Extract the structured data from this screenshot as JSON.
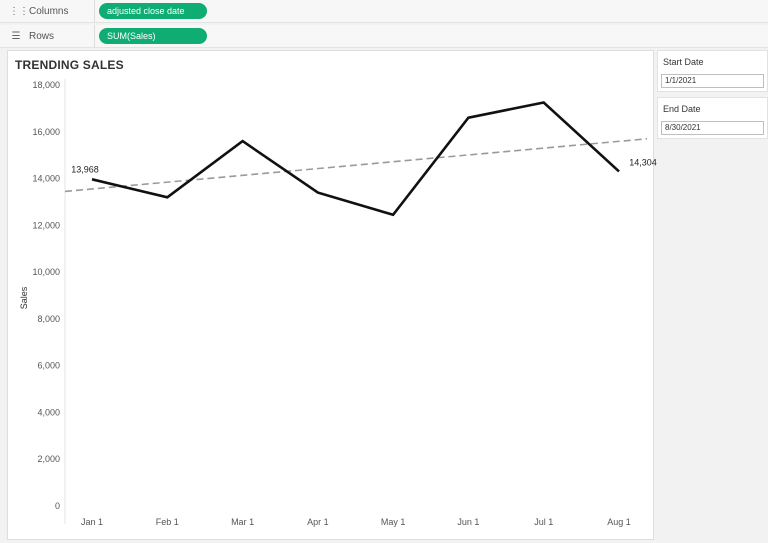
{
  "shelves": {
    "columns": {
      "label": "Columns",
      "pill": "adjusted close date"
    },
    "rows": {
      "label": "Rows",
      "pill": "SUM(Sales)"
    }
  },
  "sheet": {
    "title": "TRENDING SALES"
  },
  "parameters": {
    "start": {
      "label": "Start Date",
      "value": "1/1/2021"
    },
    "end": {
      "label": "End Date",
      "value": "8/30/2021"
    }
  },
  "colors": {
    "pill": "#0fad74",
    "line": "#111111",
    "trend": "#9a9a9a"
  },
  "icons": {
    "columns": "columns-icon",
    "rows": "rows-icon"
  },
  "chart_data": {
    "type": "line",
    "title": "TRENDING SALES",
    "xlabel": "",
    "ylabel": "Sales",
    "categories": [
      "Jan 1",
      "Feb 1",
      "Mar 1",
      "Apr 1",
      "May 1",
      "Jun 1",
      "Jul 1",
      "Aug 1"
    ],
    "series": [
      {
        "values": [
          13968,
          13200,
          15600,
          13400,
          12450,
          16600,
          17250,
          14304
        ]
      }
    ],
    "trend_line": {
      "style": "dashed",
      "start": 13450,
      "end": 15700
    },
    "data_labels": [
      {
        "index": 0,
        "text": "13,968"
      },
      {
        "index": 7,
        "text": "14,304"
      }
    ],
    "ylim": [
      0,
      18000
    ],
    "yticks": [
      "18,000",
      "16,000",
      "14,000",
      "12,000",
      "10,000",
      "8,000",
      "6,000",
      "4,000",
      "2,000",
      "0"
    ],
    "grid": false,
    "legend": "none"
  }
}
